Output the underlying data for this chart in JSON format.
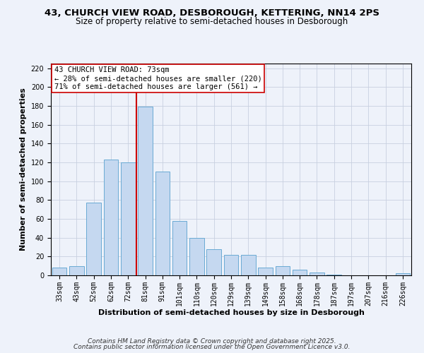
{
  "title": "43, CHURCH VIEW ROAD, DESBOROUGH, KETTERING, NN14 2PS",
  "subtitle": "Size of property relative to semi-detached houses in Desborough",
  "xlabel": "Distribution of semi-detached houses by size in Desborough",
  "ylabel": "Number of semi-detached properties",
  "categories": [
    "33sqm",
    "43sqm",
    "52sqm",
    "62sqm",
    "72sqm",
    "81sqm",
    "91sqm",
    "101sqm",
    "110sqm",
    "120sqm",
    "129sqm",
    "139sqm",
    "149sqm",
    "158sqm",
    "168sqm",
    "178sqm",
    "187sqm",
    "197sqm",
    "207sqm",
    "216sqm",
    "226sqm"
  ],
  "values": [
    8,
    10,
    77,
    123,
    120,
    179,
    110,
    58,
    40,
    28,
    22,
    22,
    8,
    10,
    6,
    3,
    1,
    0,
    0,
    0,
    2
  ],
  "bar_color": "#c5d8f0",
  "bar_edge_color": "#6aaad4",
  "vline_x_index": 4.5,
  "vline_color": "#cc0000",
  "annotation_line1": "43 CHURCH VIEW ROAD: 73sqm",
  "annotation_line2": "← 28% of semi-detached houses are smaller (220)",
  "annotation_line3": "71% of semi-detached houses are larger (561) →",
  "annotation_box_color": "#ffffff",
  "annotation_box_edge": "#cc0000",
  "ylim": [
    0,
    225
  ],
  "yticks": [
    0,
    20,
    40,
    60,
    80,
    100,
    120,
    140,
    160,
    180,
    200,
    220
  ],
  "footer_line1": "Contains HM Land Registry data © Crown copyright and database right 2025.",
  "footer_line2": "Contains public sector information licensed under the Open Government Licence v3.0.",
  "background_color": "#eef2fa",
  "grid_color": "#c8d0e0",
  "title_fontsize": 9.5,
  "subtitle_fontsize": 8.5,
  "axis_label_fontsize": 8,
  "tick_fontsize": 7,
  "annotation_fontsize": 7.5,
  "footer_fontsize": 6.5
}
